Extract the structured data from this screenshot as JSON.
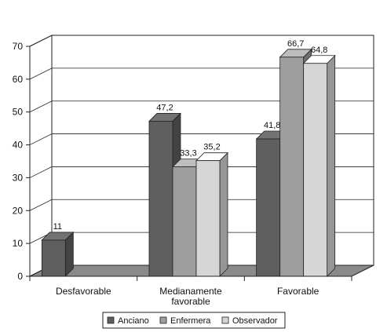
{
  "chart_data": {
    "type": "bar",
    "categories": [
      "Desfavorable",
      "Medianamente favorable",
      "Favorable"
    ],
    "category_lines": [
      [
        "Desfavorable"
      ],
      [
        "Medianamente",
        "favorable"
      ],
      [
        "Favorable"
      ]
    ],
    "series": [
      {
        "name": "Anciano",
        "values": [
          11,
          47.2,
          41.8
        ],
        "labels": [
          "11",
          "47,2",
          "41,8"
        ],
        "color": "#5f5f5f"
      },
      {
        "name": "Enfermera",
        "values": [
          null,
          33.3,
          66.7
        ],
        "labels": [
          "",
          "33,3",
          "66,7"
        ],
        "color": "#9e9e9e"
      },
      {
        "name": "Observador",
        "values": [
          null,
          35.2,
          64.8
        ],
        "labels": [
          "",
          "35,2",
          "64,8"
        ],
        "color": "#d6d6d6"
      }
    ],
    "ylim": [
      0,
      70
    ],
    "yticks": [
      0,
      10,
      20,
      30,
      40,
      50,
      60,
      70
    ],
    "grid": true,
    "legend": "bottom-center",
    "style": "3d"
  }
}
